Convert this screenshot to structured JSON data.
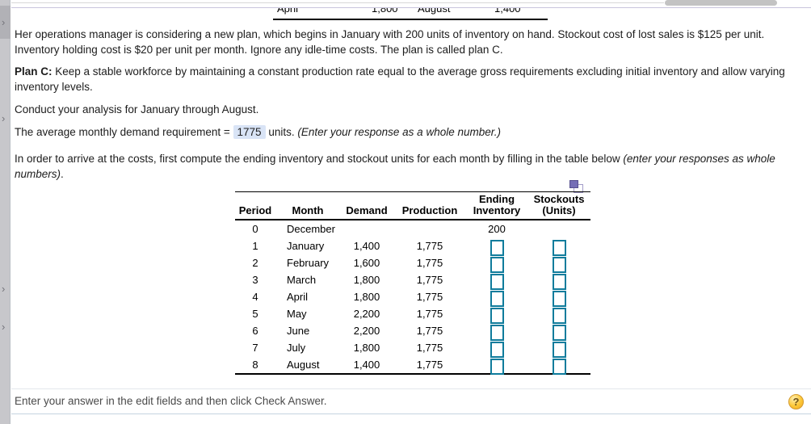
{
  "left_rail": {
    "chevron_glyph": "›"
  },
  "top_scrollbar": {},
  "top_partial_table": {
    "month1": "April",
    "value1": "1,800",
    "month2": "August",
    "value2": "1,400"
  },
  "paragraphs": {
    "intro": "Her operations manager is considering a new plan, which begins in January with 200 units of inventory on hand. Stockout cost of lost sales is $125 per unit. Inventory holding cost is $20 per unit per month. Ignore any idle-time costs. The plan is called plan C.",
    "plan_c_label": "Plan C:",
    "plan_c_text": " Keep a stable workforce by maintaining a constant production rate equal to the average gross requirements excluding initial inventory and allow varying inventory levels.",
    "conduct": "Conduct your analysis for January through August.",
    "avg_prefix": "The average monthly demand requirement = ",
    "avg_value": "1775",
    "avg_middle": " units. ",
    "avg_italic": "(Enter your response as a whole number.)",
    "fill_normal": "In order to arrive at the costs, first compute the ending inventory and stockout units for each month by filling in the table below ",
    "fill_italic": "(enter your responses as whole numbers)",
    "fill_end": "."
  },
  "table": {
    "headers": {
      "period": "Period",
      "month": "Month",
      "demand": "Demand",
      "production": "Production",
      "ending_inventory_line1": "Ending",
      "ending_inventory_line2": "Inventory",
      "stockouts_line1": "Stockouts",
      "stockouts_line2": "(Units)"
    },
    "rows": [
      {
        "period": "0",
        "month": "December",
        "demand": "",
        "production": "",
        "ending_inventory": "200",
        "stockouts": "",
        "has_inputs": false
      },
      {
        "period": "1",
        "month": "January",
        "demand": "1,400",
        "production": "1,775",
        "ending_inventory": "",
        "stockouts": "",
        "has_inputs": true
      },
      {
        "period": "2",
        "month": "February",
        "demand": "1,600",
        "production": "1,775",
        "ending_inventory": "",
        "stockouts": "",
        "has_inputs": true
      },
      {
        "period": "3",
        "month": "March",
        "demand": "1,800",
        "production": "1,775",
        "ending_inventory": "",
        "stockouts": "",
        "has_inputs": true
      },
      {
        "period": "4",
        "month": "April",
        "demand": "1,800",
        "production": "1,775",
        "ending_inventory": "",
        "stockouts": "",
        "has_inputs": true
      },
      {
        "period": "5",
        "month": "May",
        "demand": "2,200",
        "production": "1,775",
        "ending_inventory": "",
        "stockouts": "",
        "has_inputs": true
      },
      {
        "period": "6",
        "month": "June",
        "demand": "2,200",
        "production": "1,775",
        "ending_inventory": "",
        "stockouts": "",
        "has_inputs": true
      },
      {
        "period": "7",
        "month": "July",
        "demand": "1,800",
        "production": "1,775",
        "ending_inventory": "",
        "stockouts": "",
        "has_inputs": true
      },
      {
        "period": "8",
        "month": "August",
        "demand": "1,400",
        "production": "1,775",
        "ending_inventory": "",
        "stockouts": "",
        "has_inputs": true
      }
    ],
    "input_value": "",
    "input_placeholder": ""
  },
  "footer": {
    "message": "Enter your answer in the edit fields and then click Check Answer.",
    "help_label": "?"
  },
  "colors": {
    "answer_box_border": "#0f7c9c",
    "answer_highlight_bg": "#d9e4f6",
    "help_button_yellow": "#fcc735",
    "rail_gray": "#c7c7cb",
    "table_border_black": "#000000"
  }
}
